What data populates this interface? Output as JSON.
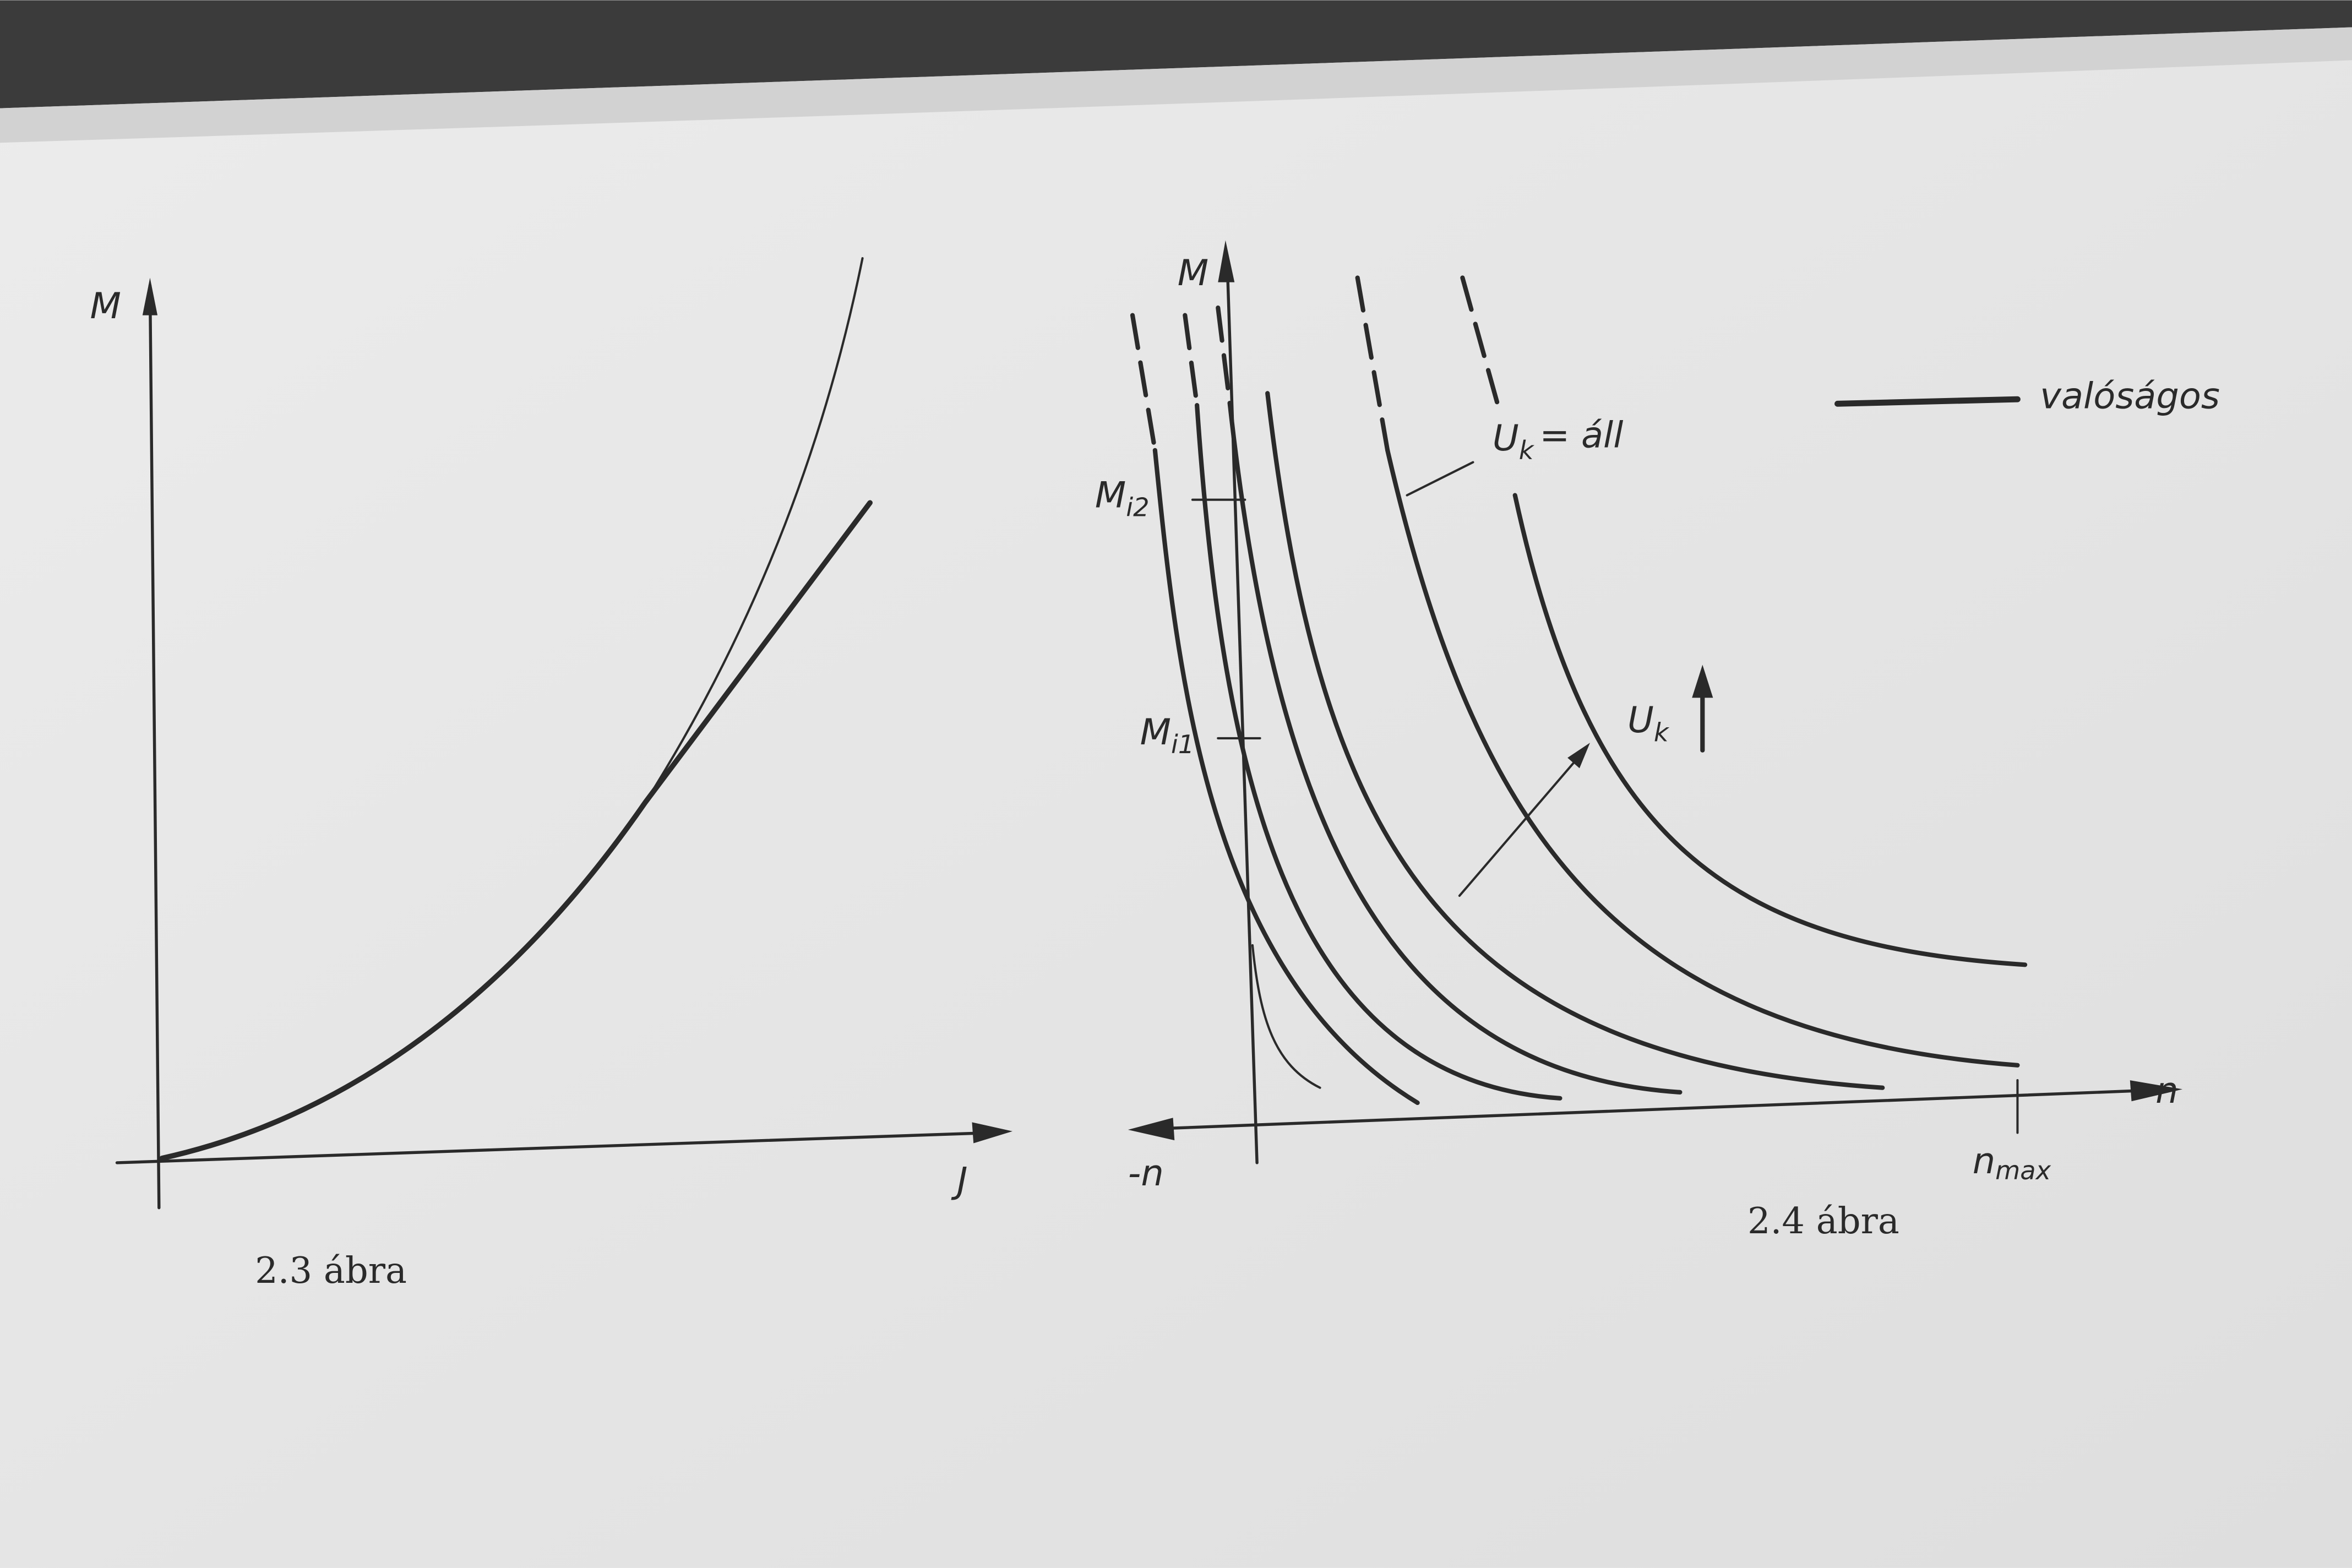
{
  "figures": [
    {
      "caption": "2.3 ábra",
      "y_axis": "M",
      "x_axis": "J"
    },
    {
      "caption": "2.4 ábra",
      "y_axis": "M",
      "x_axis": "n",
      "x_axis_negative": "-n",
      "x_marker": {
        "main": "n",
        "sub": "max"
      },
      "markers": [
        {
          "main": "M",
          "sub": "i2"
        },
        {
          "main": "M",
          "sub": "i1"
        }
      ],
      "annotations": [
        {
          "main": "U",
          "sub": "k",
          "rest": "= áll"
        },
        {
          "main": "U",
          "sub": "k"
        }
      ],
      "legend": "valóságos"
    }
  ]
}
